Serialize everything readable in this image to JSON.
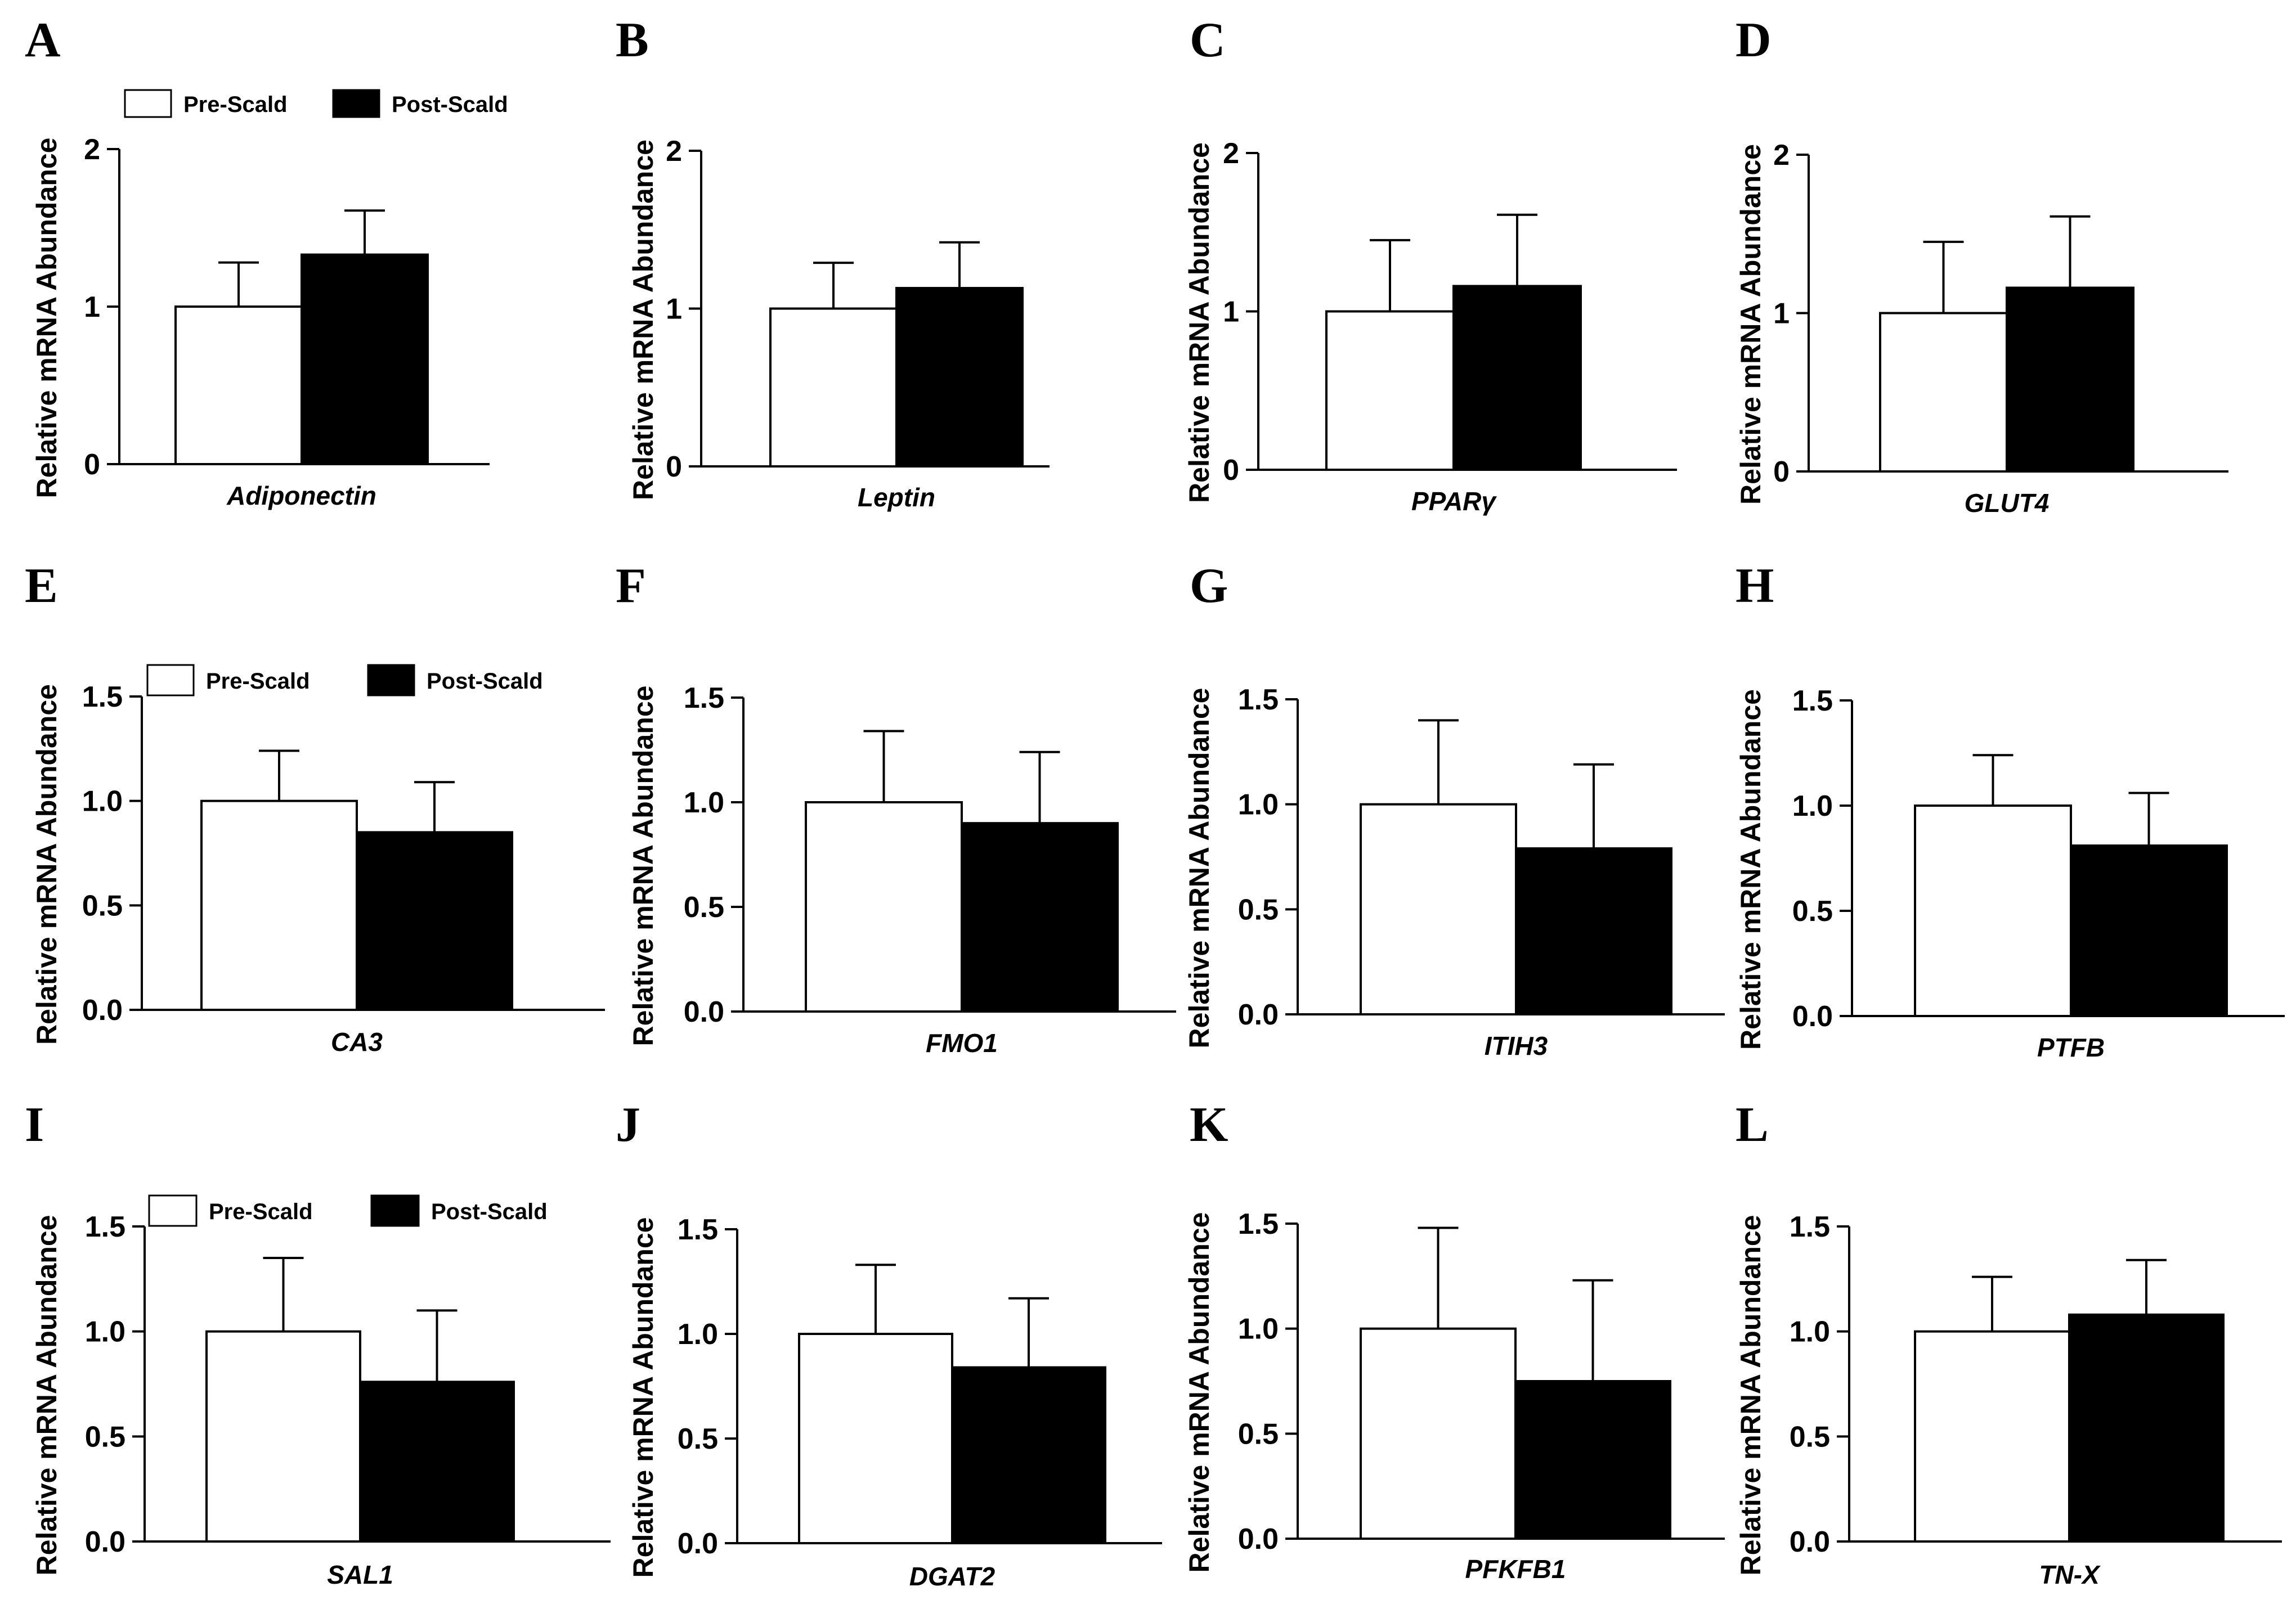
{
  "chart_data": [
    {
      "panel": "A",
      "type": "bar",
      "title": "",
      "xlabel": "Adiponectin",
      "ylabel": "Relative mRNA Abundance",
      "ylim": [
        0,
        2
      ],
      "yticks": [
        "0",
        "1",
        "2"
      ],
      "categories": [
        "Pre-Scald",
        "Post-Scald"
      ],
      "values": [
        1.0,
        1.33
      ],
      "errors": [
        0.28,
        0.28
      ],
      "legend": [
        "Pre-Scald",
        "Post-Scald"
      ]
    },
    {
      "panel": "B",
      "type": "bar",
      "title": "",
      "xlabel": "Leptin",
      "ylabel": "Relative mRNA Abundance",
      "ylim": [
        0,
        2
      ],
      "yticks": [
        "0",
        "1",
        "2"
      ],
      "categories": [
        "Pre-Scald",
        "Post-Scald"
      ],
      "values": [
        1.0,
        1.13
      ],
      "errors": [
        0.29,
        0.29
      ],
      "legend": []
    },
    {
      "panel": "C",
      "type": "bar",
      "title": "",
      "xlabel": "PPARγ",
      "ylabel": "Relative mRNA Abundance",
      "ylim": [
        0,
        2
      ],
      "yticks": [
        "0",
        "1",
        "2"
      ],
      "categories": [
        "Pre-Scald",
        "Post-Scald"
      ],
      "values": [
        1.0,
        1.16
      ],
      "errors": [
        0.45,
        0.45
      ],
      "legend": []
    },
    {
      "panel": "D",
      "type": "bar",
      "title": "",
      "xlabel": "GLUT4",
      "ylabel": "Relative mRNA Abundance",
      "ylim": [
        0,
        2
      ],
      "yticks": [
        "0",
        "1",
        "2"
      ],
      "categories": [
        "Pre-Scald",
        "Post-Scald"
      ],
      "values": [
        1.0,
        1.16
      ],
      "errors": [
        0.45,
        0.45
      ],
      "legend": []
    },
    {
      "panel": "E",
      "type": "bar",
      "title": "",
      "xlabel": "CA3",
      "ylabel": "Relative mRNA Abundance",
      "ylim": [
        0,
        1.5
      ],
      "yticks": [
        "0.0",
        "0.5",
        "1.0",
        "1.5"
      ],
      "categories": [
        "Pre-Scald",
        "Post-Scald"
      ],
      "values": [
        1.0,
        0.85
      ],
      "errors": [
        0.24,
        0.24
      ],
      "legend": [
        "Pre-Scald",
        "Post-Scald"
      ]
    },
    {
      "panel": "F",
      "type": "bar",
      "title": "",
      "xlabel": "FMO1",
      "ylabel": "Relative mRNA Abundance",
      "ylim": [
        0,
        1.5
      ],
      "yticks": [
        "0.0",
        "0.5",
        "1.0",
        "1.5"
      ],
      "categories": [
        "Pre-Scald",
        "Post-Scald"
      ],
      "values": [
        1.0,
        0.9
      ],
      "errors": [
        0.34,
        0.34
      ],
      "legend": []
    },
    {
      "panel": "G",
      "type": "bar",
      "title": "",
      "xlabel": "ITIH3",
      "ylabel": "Relative mRNA Abundance",
      "ylim": [
        0,
        1.5
      ],
      "yticks": [
        "0.0",
        "0.5",
        "1.0",
        "1.5"
      ],
      "categories": [
        "Pre-Scald",
        "Post-Scald"
      ],
      "values": [
        1.0,
        0.79
      ],
      "errors": [
        0.4,
        0.4
      ],
      "legend": []
    },
    {
      "panel": "H",
      "type": "bar",
      "title": "",
      "xlabel": "PTFB",
      "ylabel": "Relative mRNA Abundance",
      "ylim": [
        0,
        1.5
      ],
      "yticks": [
        "0.0",
        "0.5",
        "1.0",
        "1.5"
      ],
      "categories": [
        "Pre-Scald",
        "Post-Scald"
      ],
      "values": [
        1.0,
        0.81
      ],
      "errors": [
        0.24,
        0.25
      ],
      "legend": []
    },
    {
      "panel": "I",
      "type": "bar",
      "title": "",
      "xlabel": "SAL1",
      "ylabel": "Relative mRNA Abundance",
      "ylim": [
        0,
        1.5
      ],
      "yticks": [
        "0.0",
        "0.5",
        "1.0",
        "1.5"
      ],
      "categories": [
        "Pre-Scald",
        "Post-Scald"
      ],
      "values": [
        1.0,
        0.76
      ],
      "errors": [
        0.35,
        0.34
      ],
      "legend": [
        "Pre-Scald",
        "Post-Scald"
      ]
    },
    {
      "panel": "J",
      "type": "bar",
      "title": "",
      "xlabel": "DGAT2",
      "ylabel": "Relative mRNA Abundance",
      "ylim": [
        0,
        1.5
      ],
      "yticks": [
        "0.0",
        "0.5",
        "1.0",
        "1.5"
      ],
      "categories": [
        "Pre-Scald",
        "Post-Scald"
      ],
      "values": [
        1.0,
        0.84
      ],
      "errors": [
        0.33,
        0.33
      ],
      "legend": []
    },
    {
      "panel": "K",
      "type": "bar",
      "title": "",
      "xlabel": "PFKFB1",
      "ylabel": "Relative mRNA Abundance",
      "ylim": [
        0,
        1.5
      ],
      "yticks": [
        "0.0",
        "0.5",
        "1.0",
        "1.5"
      ],
      "categories": [
        "Pre-Scald",
        "Post-Scald"
      ],
      "values": [
        1.0,
        0.75
      ],
      "errors": [
        0.48,
        0.48
      ],
      "legend": []
    },
    {
      "panel": "L",
      "type": "bar",
      "title": "",
      "xlabel": "TN-X",
      "ylabel": "Relative mRNA Abundance",
      "ylim": [
        0,
        1.5
      ],
      "yticks": [
        "0.0",
        "0.5",
        "1.0",
        "1.5"
      ],
      "categories": [
        "Pre-Scald",
        "Post-Scald"
      ],
      "values": [
        1.0,
        1.08
      ],
      "errors": [
        0.26,
        0.26
      ],
      "legend": []
    }
  ],
  "colors": {
    "pre": "#ffffff",
    "post": "#000000",
    "stroke": "#000000"
  }
}
